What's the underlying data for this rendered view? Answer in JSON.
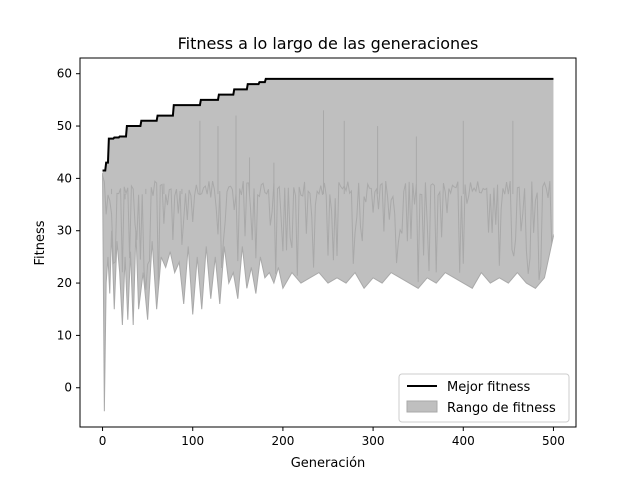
{
  "chart_data": {
    "type": "line",
    "title": "Fitness a lo largo de las generaciones",
    "xlabel": "Generación",
    "ylabel": "Fitness",
    "xlim": [
      -25,
      525
    ],
    "ylim": [
      -7.5,
      63
    ],
    "xticks": [
      0,
      100,
      200,
      300,
      400,
      500
    ],
    "yticks": [
      0,
      10,
      20,
      30,
      40,
      50,
      60
    ],
    "grid": false,
    "legend": {
      "placement": "lower-right",
      "entries": [
        "Mejor fitness",
        "Rango de fitness"
      ]
    },
    "colors": {
      "best": "#000000",
      "range_fill": "#bfbfbf",
      "range_edge": "#a9a9a9"
    },
    "series": [
      {
        "name": "Mejor fitness",
        "kind": "step-line",
        "x": [
          0,
          3,
          4,
          6,
          7,
          12,
          13,
          18,
          19,
          26,
          27,
          42,
          43,
          60,
          61,
          78,
          79,
          108,
          109,
          128,
          129,
          145,
          146,
          160,
          161,
          173,
          174,
          180,
          181,
          500
        ],
        "y": [
          41.5,
          41.5,
          43,
          43,
          47.6,
          47.6,
          47.8,
          47.8,
          48,
          48,
          50,
          50,
          51,
          51,
          52,
          52,
          54,
          54,
          55,
          55,
          56,
          56,
          57,
          57,
          58,
          58,
          58.4,
          58.4,
          59,
          59
        ]
      },
      {
        "name": "Rango de fitness",
        "kind": "band",
        "upper_follows": "Mejor fitness",
        "x": [
          0,
          2,
          4,
          6,
          8,
          10,
          13,
          16,
          19,
          22,
          25,
          28,
          31,
          34,
          37,
          40,
          45,
          50,
          55,
          60,
          65,
          70,
          75,
          80,
          85,
          90,
          95,
          100,
          105,
          110,
          115,
          120,
          125,
          130,
          135,
          140,
          145,
          150,
          155,
          160,
          165,
          170,
          175,
          180,
          185,
          190,
          195,
          200,
          210,
          220,
          230,
          240,
          250,
          260,
          270,
          280,
          290,
          300,
          310,
          320,
          330,
          340,
          350,
          360,
          370,
          380,
          390,
          400,
          410,
          420,
          430,
          440,
          450,
          460,
          470,
          480,
          490,
          500
        ],
        "lower": [
          41,
          -4.5,
          20,
          25,
          18,
          30,
          15,
          28,
          22,
          12,
          25,
          13,
          26,
          12,
          30,
          15,
          22,
          13,
          28,
          15,
          25,
          23,
          26,
          22,
          24,
          16,
          27,
          14,
          25,
          15,
          27,
          17,
          25,
          16,
          27,
          20,
          22,
          17,
          27,
          19,
          23,
          18,
          25,
          21,
          22,
          20,
          23,
          19,
          22,
          20,
          21,
          22,
          20,
          21,
          20,
          22,
          19,
          21,
          20,
          22,
          21,
          20,
          19,
          21,
          20,
          22,
          21,
          20,
          19,
          22,
          20,
          21,
          20,
          22,
          20,
          19,
          21,
          29
        ],
        "upper_spikes_x": [
          10,
          25,
          48,
          68,
          88,
          108,
          128,
          148,
          163,
          190,
          245,
          268,
          305,
          348,
          400,
          455
        ],
        "upper_spikes_y": [
          38,
          36,
          38,
          39,
          38,
          51,
          50,
          52,
          44,
          43,
          53,
          51,
          50,
          48,
          51,
          51
        ]
      }
    ]
  }
}
